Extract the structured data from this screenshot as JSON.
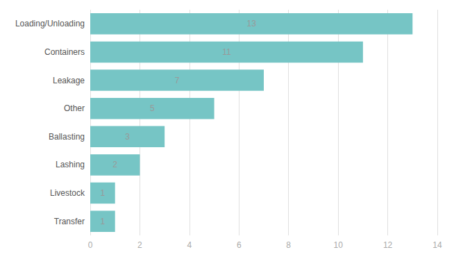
{
  "chart_data": {
    "type": "bar",
    "orientation": "horizontal",
    "categories": [
      "Transfer",
      "Livestock",
      "Lashing",
      "Ballasting",
      "Other",
      "Leakage",
      "Containers",
      "Loading/Unloading"
    ],
    "values": [
      1,
      1,
      2,
      3,
      5,
      7,
      11,
      13
    ],
    "color": "#76C5C5",
    "xlim": [
      0,
      14
    ],
    "xticks": [
      0,
      2,
      4,
      6,
      8,
      10,
      12,
      14
    ],
    "grid": true,
    "data_labels": true
  }
}
